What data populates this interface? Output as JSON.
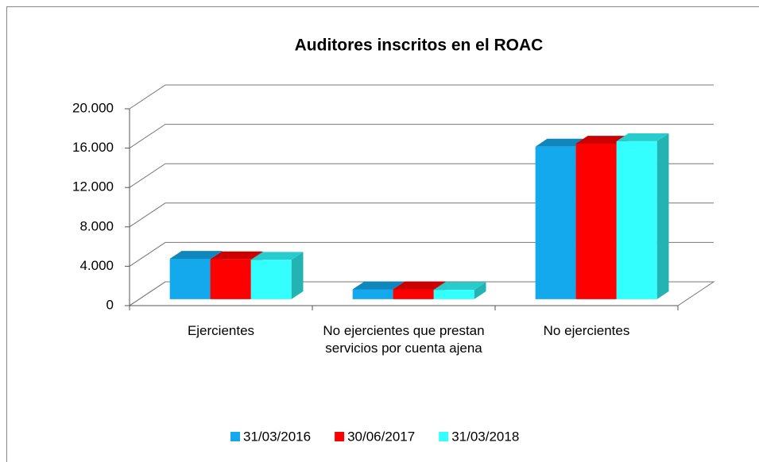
{
  "chart_data": {
    "type": "bar3d",
    "title": "Auditores inscritos en el ROAC",
    "categories": [
      "Ejercientes",
      "No ejercientes que prestan servicios por cuenta ajena",
      "No ejercientes"
    ],
    "series": [
      {
        "name": "31/03/2016",
        "color": "#13a9ec",
        "values": [
          4100,
          1000,
          15500
        ]
      },
      {
        "name": "30/06/2017",
        "color": "#ff0000",
        "values": [
          4050,
          1000,
          15800
        ]
      },
      {
        "name": "31/03/2018",
        "color": "#33ffff",
        "values": [
          4000,
          950,
          16050
        ]
      }
    ],
    "ylim": [
      0,
      20000
    ],
    "yticks": [
      0,
      {
        "value": 4000,
        "label": "4.000"
      },
      {
        "value": 8000,
        "label": "8.000"
      },
      {
        "value": 12000,
        "label": "12.000"
      },
      {
        "value": 16000,
        "label": "16.000"
      },
      {
        "value": 20000,
        "label": "20.000"
      }
    ],
    "grid": true,
    "legend": "bottom"
  }
}
